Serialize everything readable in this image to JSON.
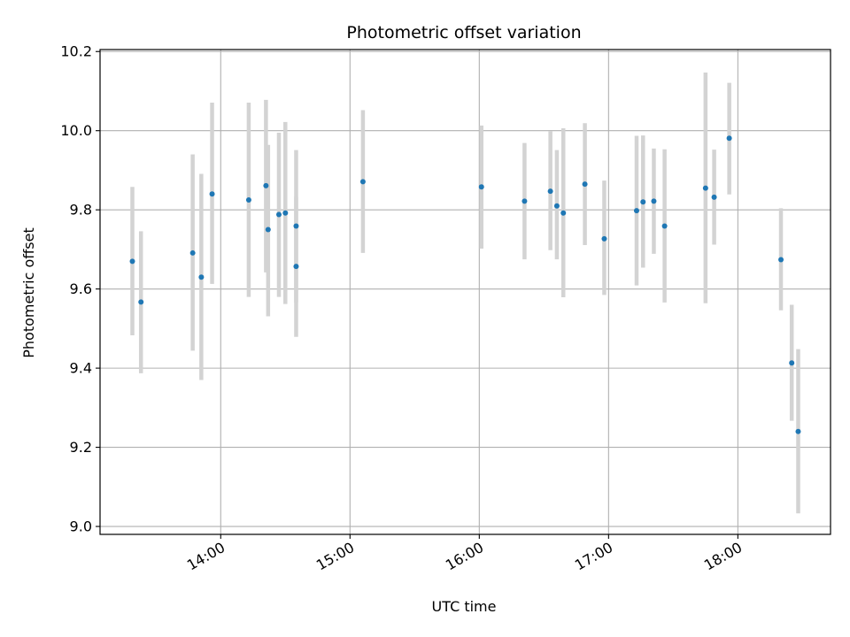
{
  "chart_data": {
    "type": "scatter",
    "title": "Photometric offset variation",
    "xlabel": "UTC time",
    "ylabel": "Photometric offset",
    "x_unit": "hours UTC",
    "xlim": [
      "13:04",
      "18:43"
    ],
    "ylim": [
      8.98,
      10.205
    ],
    "x_ticks": [
      "14:00",
      "15:00",
      "16:00",
      "17:00",
      "18:00"
    ],
    "y_ticks": [
      "9.0",
      "9.2",
      "9.4",
      "9.6",
      "9.8",
      "10.0",
      "10.2"
    ],
    "grid": true,
    "colors": {
      "point": "#1f77b4",
      "errorbar": "#d3d3d3",
      "grid": "#b0b0b0",
      "axis": "#000000"
    },
    "series": [
      {
        "points": [
          {
            "x": "13:19",
            "y": 9.67,
            "ylo": 9.483,
            "yhi": 9.858
          },
          {
            "x": "13:23",
            "y": 9.567,
            "ylo": 9.387,
            "yhi": 9.746
          },
          {
            "x": "13:47",
            "y": 9.691,
            "ylo": 9.444,
            "yhi": 9.94
          },
          {
            "x": "13:51",
            "y": 9.63,
            "ylo": 9.37,
            "yhi": 9.891
          },
          {
            "x": "13:56",
            "y": 9.84,
            "ylo": 9.613,
            "yhi": 10.071
          },
          {
            "x": "14:13",
            "y": 9.825,
            "ylo": 9.58,
            "yhi": 10.071
          },
          {
            "x": "14:21",
            "y": 9.861,
            "ylo": 9.642,
            "yhi": 10.078
          },
          {
            "x": "14:22",
            "y": 9.75,
            "ylo": 9.531,
            "yhi": 9.964
          },
          {
            "x": "14:27",
            "y": 9.788,
            "ylo": 9.58,
            "yhi": 9.995
          },
          {
            "x": "14:30",
            "y": 9.792,
            "ylo": 9.562,
            "yhi": 10.022
          },
          {
            "x": "14:35",
            "y": 9.657,
            "ylo": 9.479,
            "yhi": 9.833
          },
          {
            "x": "14:35",
            "y": 9.759,
            "ylo": 9.566,
            "yhi": 9.951
          },
          {
            "x": "15:06",
            "y": 9.871,
            "ylo": 9.691,
            "yhi": 10.052
          },
          {
            "x": "16:01",
            "y": 9.858,
            "ylo": 9.702,
            "yhi": 10.013
          },
          {
            "x": "16:21",
            "y": 9.822,
            "ylo": 9.675,
            "yhi": 9.969
          },
          {
            "x": "16:33",
            "y": 9.847,
            "ylo": 9.698,
            "yhi": 9.999
          },
          {
            "x": "16:36",
            "y": 9.81,
            "ylo": 9.675,
            "yhi": 9.951
          },
          {
            "x": "16:39",
            "y": 9.792,
            "ylo": 9.579,
            "yhi": 10.006
          },
          {
            "x": "16:49",
            "y": 9.865,
            "ylo": 9.711,
            "yhi": 10.019
          },
          {
            "x": "16:58",
            "y": 9.727,
            "ylo": 9.585,
            "yhi": 9.874
          },
          {
            "x": "17:13",
            "y": 9.798,
            "ylo": 9.609,
            "yhi": 9.987
          },
          {
            "x": "17:16",
            "y": 9.82,
            "ylo": 9.654,
            "yhi": 9.988
          },
          {
            "x": "17:21",
            "y": 9.822,
            "ylo": 9.689,
            "yhi": 9.955
          },
          {
            "x": "17:26",
            "y": 9.759,
            "ylo": 9.566,
            "yhi": 9.953
          },
          {
            "x": "17:45",
            "y": 9.855,
            "ylo": 9.564,
            "yhi": 10.147
          },
          {
            "x": "17:49",
            "y": 9.832,
            "ylo": 9.712,
            "yhi": 9.952
          },
          {
            "x": "17:56",
            "y": 9.981,
            "ylo": 9.839,
            "yhi": 10.121
          },
          {
            "x": "18:20",
            "y": 9.674,
            "ylo": 9.546,
            "yhi": 9.804
          },
          {
            "x": "18:25",
            "y": 9.413,
            "ylo": 9.267,
            "yhi": 9.56
          },
          {
            "x": "18:28",
            "y": 9.24,
            "ylo": 9.033,
            "yhi": 9.448
          }
        ]
      }
    ]
  }
}
